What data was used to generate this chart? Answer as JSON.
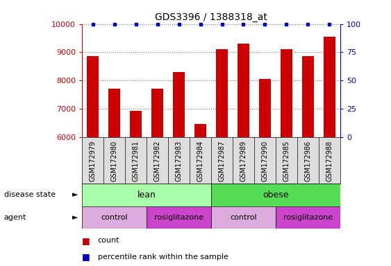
{
  "title": "GDS3396 / 1388318_at",
  "samples": [
    "GSM172979",
    "GSM172980",
    "GSM172981",
    "GSM172982",
    "GSM172983",
    "GSM172984",
    "GSM172987",
    "GSM172989",
    "GSM172990",
    "GSM172985",
    "GSM172986",
    "GSM172988"
  ],
  "counts": [
    8850,
    7700,
    6920,
    7700,
    8300,
    6450,
    9100,
    9300,
    8050,
    9100,
    8850,
    9560
  ],
  "percentile_ranks": [
    100,
    100,
    100,
    100,
    100,
    100,
    100,
    100,
    100,
    100,
    100,
    100
  ],
  "bar_color": "#cc0000",
  "dot_color": "#0000cc",
  "ylim_left": [
    6000,
    10000
  ],
  "ylim_right": [
    0,
    100
  ],
  "yticks_left": [
    6000,
    7000,
    8000,
    9000,
    10000
  ],
  "yticks_right": [
    0,
    25,
    50,
    75,
    100
  ],
  "disease_state_lean": [
    0,
    6
  ],
  "disease_state_obese": [
    6,
    12
  ],
  "agent_control_lean": [
    0,
    3
  ],
  "agent_rosiglitazone_lean": [
    3,
    6
  ],
  "agent_control_obese": [
    6,
    9
  ],
  "agent_rosiglitazone_obese": [
    9,
    12
  ],
  "disease_state_color_lean": "#aaffaa",
  "disease_state_color_obese": "#55dd55",
  "agent_color_control": "#ddaadd",
  "agent_color_rosiglitazone": "#cc44cc",
  "label_bg_color": "#dddddd",
  "legend_count_color": "#cc0000",
  "legend_rank_color": "#0000cc",
  "grid_color": "#777777",
  "tick_label_color_left": "#cc0000",
  "tick_label_color_right": "#0000cc",
  "bar_width": 0.55
}
